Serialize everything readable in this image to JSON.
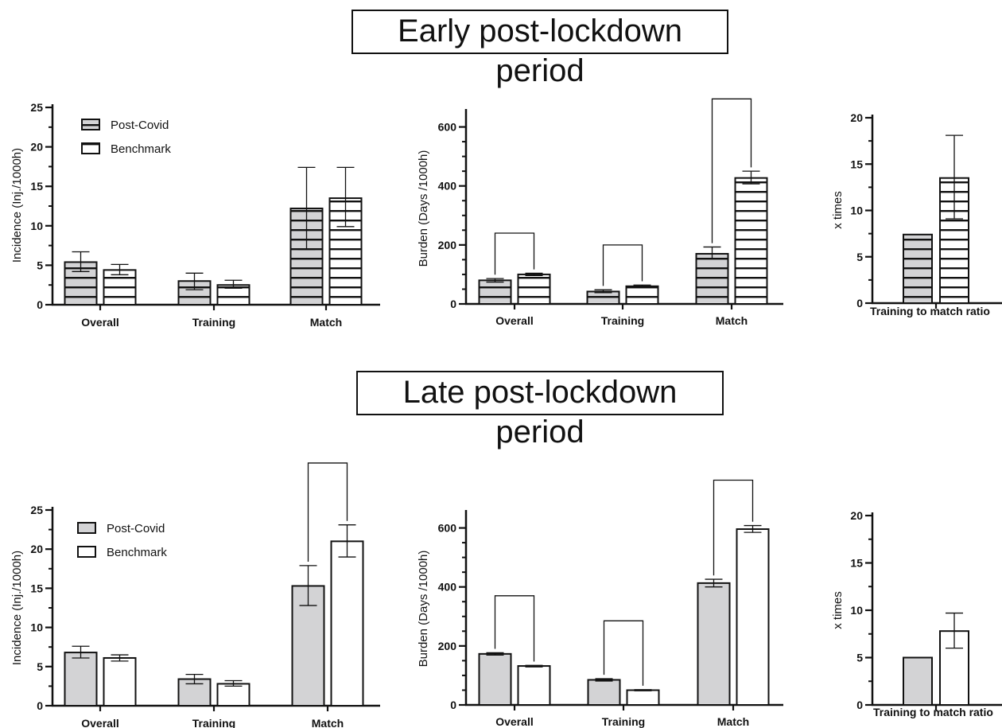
{
  "titles": {
    "early": "Early post-lockdown period",
    "late": "Late post-lockdown period"
  },
  "colors": {
    "post_covid": "#d3d3d5",
    "benchmark": "#ffffff",
    "stroke": "#111111"
  },
  "chart_data": [
    {
      "id": "early-incidence",
      "type": "bar",
      "period": "early",
      "pattern": "stripes",
      "ylabel": "Incidence (Inj./1000h)",
      "ylim": [
        0,
        25
      ],
      "yticks": [
        0,
        5,
        10,
        15,
        20,
        25
      ],
      "categories": [
        "Overall",
        "Training",
        "Match"
      ],
      "legend": {
        "show": true,
        "placement": "top-left"
      },
      "series": [
        {
          "name": "Post-Covid",
          "values": [
            5.4,
            3.0,
            12.2
          ],
          "err_low": [
            4.2,
            1.9,
            7.0
          ],
          "err_high": [
            6.7,
            4.0,
            17.4
          ]
        },
        {
          "name": "Benchmark",
          "values": [
            4.4,
            2.5,
            13.5
          ],
          "err_low": [
            3.8,
            2.1,
            9.9
          ],
          "err_high": [
            5.1,
            3.1,
            17.4
          ]
        }
      ],
      "brackets": []
    },
    {
      "id": "early-burden",
      "type": "bar",
      "period": "early",
      "pattern": "stripes",
      "ylabel": "Burden (Days /1000h)",
      "ylim": [
        0,
        650
      ],
      "yticks": [
        0,
        200,
        400,
        600
      ],
      "categories": [
        "Overall",
        "Training",
        "Match"
      ],
      "legend": {
        "show": false
      },
      "series": [
        {
          "values": [
            80,
            42,
            170
          ],
          "err_low": [
            74,
            38,
            153
          ],
          "err_high": [
            86,
            48,
            193
          ]
        },
        {
          "values": [
            100,
            60,
            427
          ],
          "err_low": [
            96,
            57,
            407
          ],
          "err_high": [
            104,
            64,
            450
          ]
        }
      ],
      "brackets": [
        {
          "category": 0,
          "top": 240
        },
        {
          "category": 1,
          "top": 200
        },
        {
          "category": 2,
          "top": 695
        }
      ]
    },
    {
      "id": "early-ratio",
      "type": "bar",
      "period": "early",
      "pattern": "stripes",
      "ylabel": "x times",
      "ylim": [
        0,
        20
      ],
      "yticks": [
        0,
        5,
        10,
        15,
        20
      ],
      "categories": [
        "Training to match ratio"
      ],
      "legend": {
        "show": false
      },
      "series": [
        {
          "values": [
            7.4
          ],
          "err_low": [
            null
          ],
          "err_high": [
            null
          ]
        },
        {
          "values": [
            13.5
          ],
          "err_low": [
            9.1
          ],
          "err_high": [
            18.1
          ]
        }
      ],
      "brackets": []
    },
    {
      "id": "late-incidence",
      "type": "bar",
      "period": "late",
      "pattern": "solid",
      "ylabel": "Incidence (Inj./1000h)",
      "ylim": [
        0,
        25
      ],
      "yticks": [
        0,
        5,
        10,
        15,
        20,
        25
      ],
      "categories": [
        "Overall",
        "Training",
        "Match"
      ],
      "legend": {
        "show": true,
        "placement": "top-left"
      },
      "series": [
        {
          "name": "Post-Covid",
          "values": [
            6.8,
            3.4,
            15.3
          ],
          "err_low": [
            6.1,
            2.8,
            12.8
          ],
          "err_high": [
            7.6,
            4.0,
            17.9
          ]
        },
        {
          "name": "Benchmark",
          "values": [
            6.1,
            2.8,
            21.0
          ],
          "err_low": [
            5.7,
            2.5,
            19.0
          ],
          "err_high": [
            6.5,
            3.2,
            23.1
          ]
        }
      ],
      "brackets": [
        {
          "category": 2,
          "top": 31.0
        }
      ]
    },
    {
      "id": "late-burden",
      "type": "bar",
      "period": "late",
      "pattern": "solid",
      "ylabel": "Burden (Days /1000h)",
      "ylim": [
        0,
        650
      ],
      "yticks": [
        0,
        200,
        400,
        600
      ],
      "categories": [
        "Overall",
        "Training",
        "Match"
      ],
      "legend": {
        "show": false
      },
      "series": [
        {
          "values": [
            173,
            85,
            413
          ],
          "err_low": [
            169,
            81,
            400
          ],
          "err_high": [
            177,
            89,
            426
          ]
        },
        {
          "values": [
            132,
            50,
            596
          ],
          "err_low": [
            129,
            48,
            585
          ],
          "err_high": [
            134,
            52,
            608
          ]
        }
      ],
      "brackets": [
        {
          "category": 0,
          "top": 370
        },
        {
          "category": 1,
          "top": 285
        },
        {
          "category": 2,
          "top": 762
        }
      ]
    },
    {
      "id": "late-ratio",
      "type": "bar",
      "period": "late",
      "pattern": "solid",
      "ylabel": "x times",
      "ylim": [
        0,
        20
      ],
      "yticks": [
        0,
        5,
        10,
        15,
        20
      ],
      "categories": [
        "Training to match ratio"
      ],
      "legend": {
        "show": false
      },
      "series": [
        {
          "values": [
            5.0
          ],
          "err_low": [
            null
          ],
          "err_high": [
            null
          ]
        },
        {
          "values": [
            7.8
          ],
          "err_low": [
            6.0
          ],
          "err_high": [
            9.7
          ]
        }
      ],
      "brackets": []
    }
  ]
}
